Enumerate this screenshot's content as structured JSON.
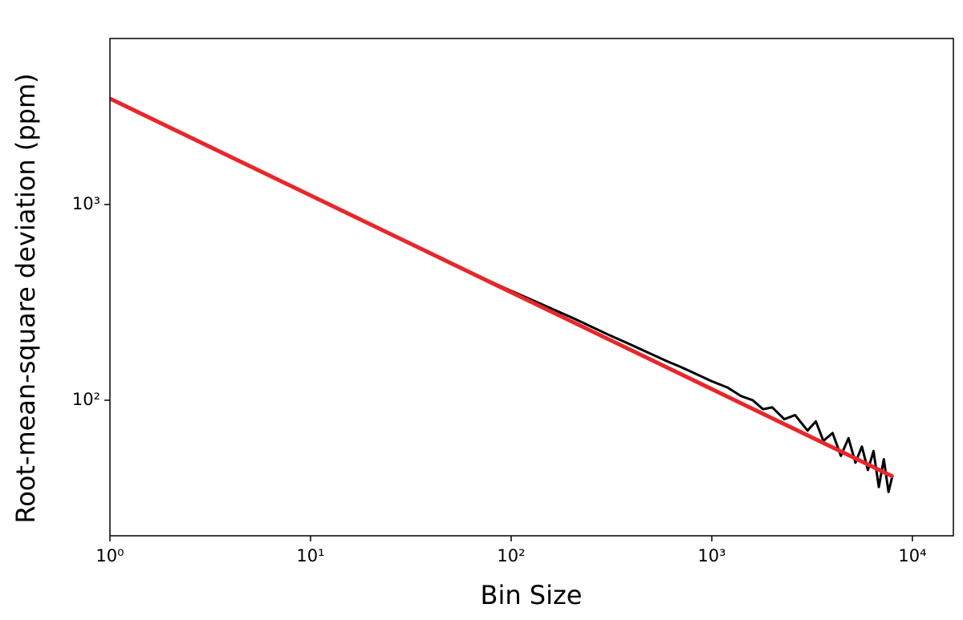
{
  "chart_data": {
    "type": "line",
    "xlabel": "Bin Size",
    "ylabel": "Root-mean-square deviation (ppm)",
    "xscale": "log",
    "yscale": "log",
    "xlim": [
      1,
      16000
    ],
    "ylim": [
      20.3,
      7050
    ],
    "xticks": [
      {
        "value": 1,
        "label": "10⁰"
      },
      {
        "value": 10,
        "label": "10¹"
      },
      {
        "value": 100,
        "label": "10²"
      },
      {
        "value": 1000,
        "label": "10³"
      },
      {
        "value": 10000,
        "label": "10⁴"
      }
    ],
    "yticks": [
      {
        "value": 100,
        "label": "10²"
      },
      {
        "value": 1000,
        "label": "10³"
      }
    ],
    "grid": false,
    "series": [
      {
        "color": "#000000",
        "width": 3,
        "x": [
          1,
          2,
          3,
          4,
          5,
          7,
          10,
          15,
          20,
          30,
          40,
          50,
          70,
          100,
          130,
          170,
          200,
          250,
          300,
          400,
          500,
          600,
          700,
          800,
          1000,
          1200,
          1400,
          1600,
          1800,
          2000,
          2300,
          2600,
          3000,
          3300,
          3600,
          4000,
          4400,
          4800,
          5200,
          5600,
          6000,
          6400,
          6800,
          7200,
          7600,
          7900
        ],
        "values": [
          3476,
          2460,
          2010,
          1745,
          1565,
          1320,
          1110,
          905,
          790,
          650,
          565,
          505,
          428,
          362,
          322,
          285,
          265,
          238,
          218,
          191,
          172,
          158,
          148,
          139,
          125,
          116,
          105,
          100,
          90,
          92,
          80,
          84,
          70,
          78,
          62,
          68,
          52,
          64,
          48,
          58,
          44,
          55,
          36,
          50,
          34,
          40
        ]
      },
      {
        "color": "#e8272b",
        "width": 5,
        "x": [
          1,
          7900
        ],
        "values": [
          3476,
          41
        ]
      }
    ]
  }
}
